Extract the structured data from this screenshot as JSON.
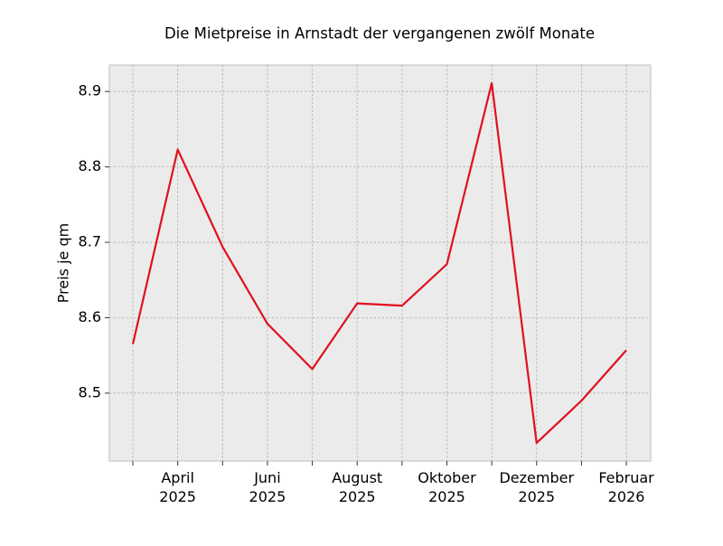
{
  "chart_data": {
    "type": "line",
    "title": "Die Mietpreise in Arnstadt der vergangenen zwölf Monate",
    "y_label": "Preis je qm",
    "categories": [
      null,
      "April 2025",
      null,
      "Juni 2025",
      null,
      "August 2025",
      null,
      "Oktober 2025",
      null,
      "Dezember 2025",
      null,
      "Februar 2026"
    ],
    "series": [
      {
        "name": "Preis je qm",
        "color": "#e0101e",
        "values": [
          8.565,
          8.823,
          8.694,
          8.592,
          8.532,
          8.619,
          8.616,
          8.671,
          8.911,
          8.434,
          8.49,
          8.557
        ]
      }
    ],
    "ylim": [
      8.41,
      8.935
    ],
    "yticks": [
      8.5,
      8.6,
      8.7,
      8.8,
      8.9
    ],
    "grid": true
  }
}
